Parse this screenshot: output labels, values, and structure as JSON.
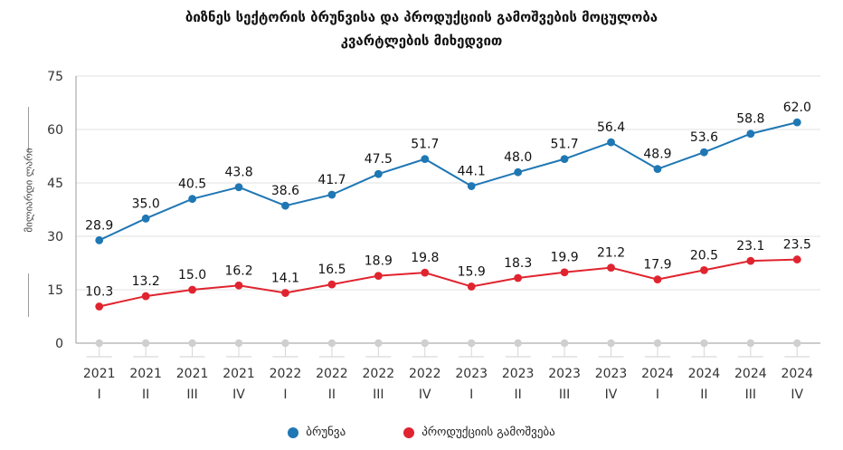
{
  "chart_data": {
    "type": "line",
    "title_line1": "ბიზნეს სექტორის ბრუნვისა და პროდუქციის გამოშვების მოცულობა",
    "title_line2": "კვარტლების მიხედვით",
    "ylabel": "მილიარდი ლარი",
    "ylim": [
      0,
      75
    ],
    "yticks": [
      0,
      15,
      30,
      45,
      60,
      75
    ],
    "grid": true,
    "legend_position": "bottom",
    "categories": [
      {
        "year": "2021",
        "quarter": "I"
      },
      {
        "year": "2021",
        "quarter": "II"
      },
      {
        "year": "2021",
        "quarter": "III"
      },
      {
        "year": "2021",
        "quarter": "IV"
      },
      {
        "year": "2022",
        "quarter": "I"
      },
      {
        "year": "2022",
        "quarter": "II"
      },
      {
        "year": "2022",
        "quarter": "III"
      },
      {
        "year": "2022",
        "quarter": "IV"
      },
      {
        "year": "2023",
        "quarter": "I"
      },
      {
        "year": "2023",
        "quarter": "II"
      },
      {
        "year": "2023",
        "quarter": "III"
      },
      {
        "year": "2023",
        "quarter": "IV"
      },
      {
        "year": "2024",
        "quarter": "I"
      },
      {
        "year": "2024",
        "quarter": "II"
      },
      {
        "year": "2024",
        "quarter": "III"
      },
      {
        "year": "2024",
        "quarter": "IV"
      }
    ],
    "series": [
      {
        "name": "ბრუნვა",
        "color": "#1f77b4",
        "values": [
          28.9,
          35.0,
          40.5,
          43.8,
          38.6,
          41.7,
          47.5,
          51.7,
          44.1,
          48.0,
          51.7,
          56.4,
          48.9,
          53.6,
          58.8,
          62.0
        ],
        "labels": [
          "28.9",
          "35.0",
          "40.5",
          "43.8",
          "38.6",
          "41.7",
          "47.5",
          "51.7",
          "44.1",
          "48.0",
          "51.7",
          "56.4",
          "48.9",
          "53.6",
          "58.8",
          "62.0"
        ]
      },
      {
        "name": "პროდუქციის გამოშვება",
        "color": "#e0242f",
        "values": [
          10.3,
          13.2,
          15.0,
          16.2,
          14.1,
          16.5,
          18.9,
          19.8,
          15.9,
          18.3,
          19.9,
          21.2,
          17.9,
          20.5,
          23.1,
          23.5
        ],
        "labels": [
          "10.3",
          "13.2",
          "15.0",
          "16.2",
          "14.1",
          "16.5",
          "18.9",
          "19.8",
          "15.9",
          "18.3",
          "19.9",
          "21.2",
          "17.9",
          "20.5",
          "23.1",
          "23.5"
        ]
      }
    ]
  }
}
